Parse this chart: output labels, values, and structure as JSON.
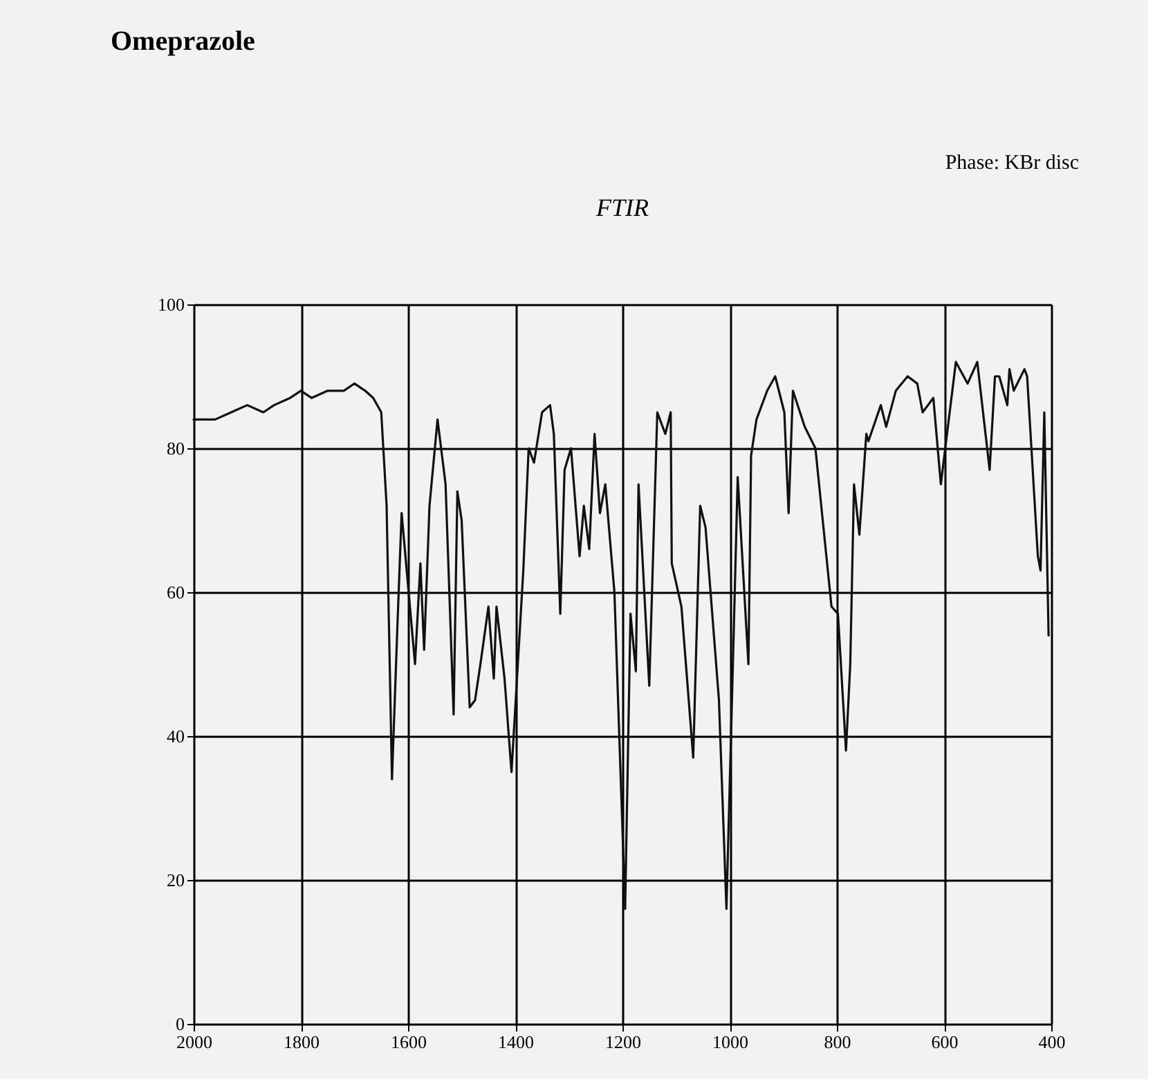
{
  "chart_data": {
    "type": "line",
    "title": "Omeprazole",
    "subtitle": "FTIR",
    "annotations": [
      "Phase: KBr disc"
    ],
    "x": [
      2000,
      1960,
      1930,
      1900,
      1870,
      1850,
      1820,
      1800,
      1780,
      1750,
      1720,
      1700,
      1680,
      1665,
      1650,
      1640,
      1630,
      1620,
      1612,
      1587,
      1577,
      1570,
      1560,
      1545,
      1530,
      1515,
      1508,
      1500,
      1485,
      1475,
      1465,
      1450,
      1440,
      1435,
      1420,
      1407,
      1385,
      1375,
      1365,
      1350,
      1335,
      1328,
      1316,
      1308,
      1296,
      1280,
      1272,
      1262,
      1252,
      1242,
      1232,
      1215,
      1195,
      1185,
      1175,
      1170,
      1150,
      1135,
      1120,
      1110,
      1108,
      1090,
      1068,
      1055,
      1045,
      1020,
      1006,
      995,
      985,
      965,
      960,
      950,
      930,
      915,
      898,
      890,
      882,
      860,
      840,
      810,
      798,
      783,
      775,
      768,
      758,
      745,
      741,
      718,
      708,
      690,
      668,
      650,
      640,
      620,
      606,
      578,
      556,
      538,
      515,
      505,
      497,
      482,
      478,
      470,
      450,
      445,
      425,
      420,
      413,
      405
    ],
    "series": [
      {
        "color": "#111111",
        "values": [
          84,
          84,
          85,
          86,
          85,
          86,
          87,
          88,
          87,
          88,
          88,
          89,
          88,
          87,
          85,
          72,
          34,
          55,
          71,
          50,
          64,
          52,
          72,
          84,
          75,
          43,
          74,
          70,
          44,
          45,
          50,
          58,
          48,
          58,
          48,
          35,
          63,
          80,
          78,
          85,
          86,
          82,
          57,
          77,
          80,
          65,
          72,
          66,
          82,
          71,
          75,
          60,
          16,
          57,
          49,
          75,
          47,
          85,
          82,
          85,
          64,
          58,
          37,
          72,
          69,
          45,
          16,
          47,
          76,
          50,
          79,
          84,
          88,
          90,
          85,
          71,
          88,
          83,
          80,
          58,
          57,
          38,
          50,
          75,
          68,
          82,
          81,
          86,
          83,
          88,
          90,
          89,
          85,
          87,
          75,
          92,
          89,
          92,
          77,
          90,
          90,
          86,
          91,
          88,
          91,
          90,
          65,
          63,
          85,
          54
        ]
      }
    ],
    "xlim": [
      2000,
      400
    ],
    "xticks": [
      2000,
      1800,
      1600,
      1400,
      1200,
      1000,
      800,
      600,
      400
    ],
    "ylim": [
      0,
      100
    ],
    "yticks": [
      0,
      20,
      40,
      60,
      80,
      100
    ],
    "grid": true,
    "line_style": "solid"
  }
}
